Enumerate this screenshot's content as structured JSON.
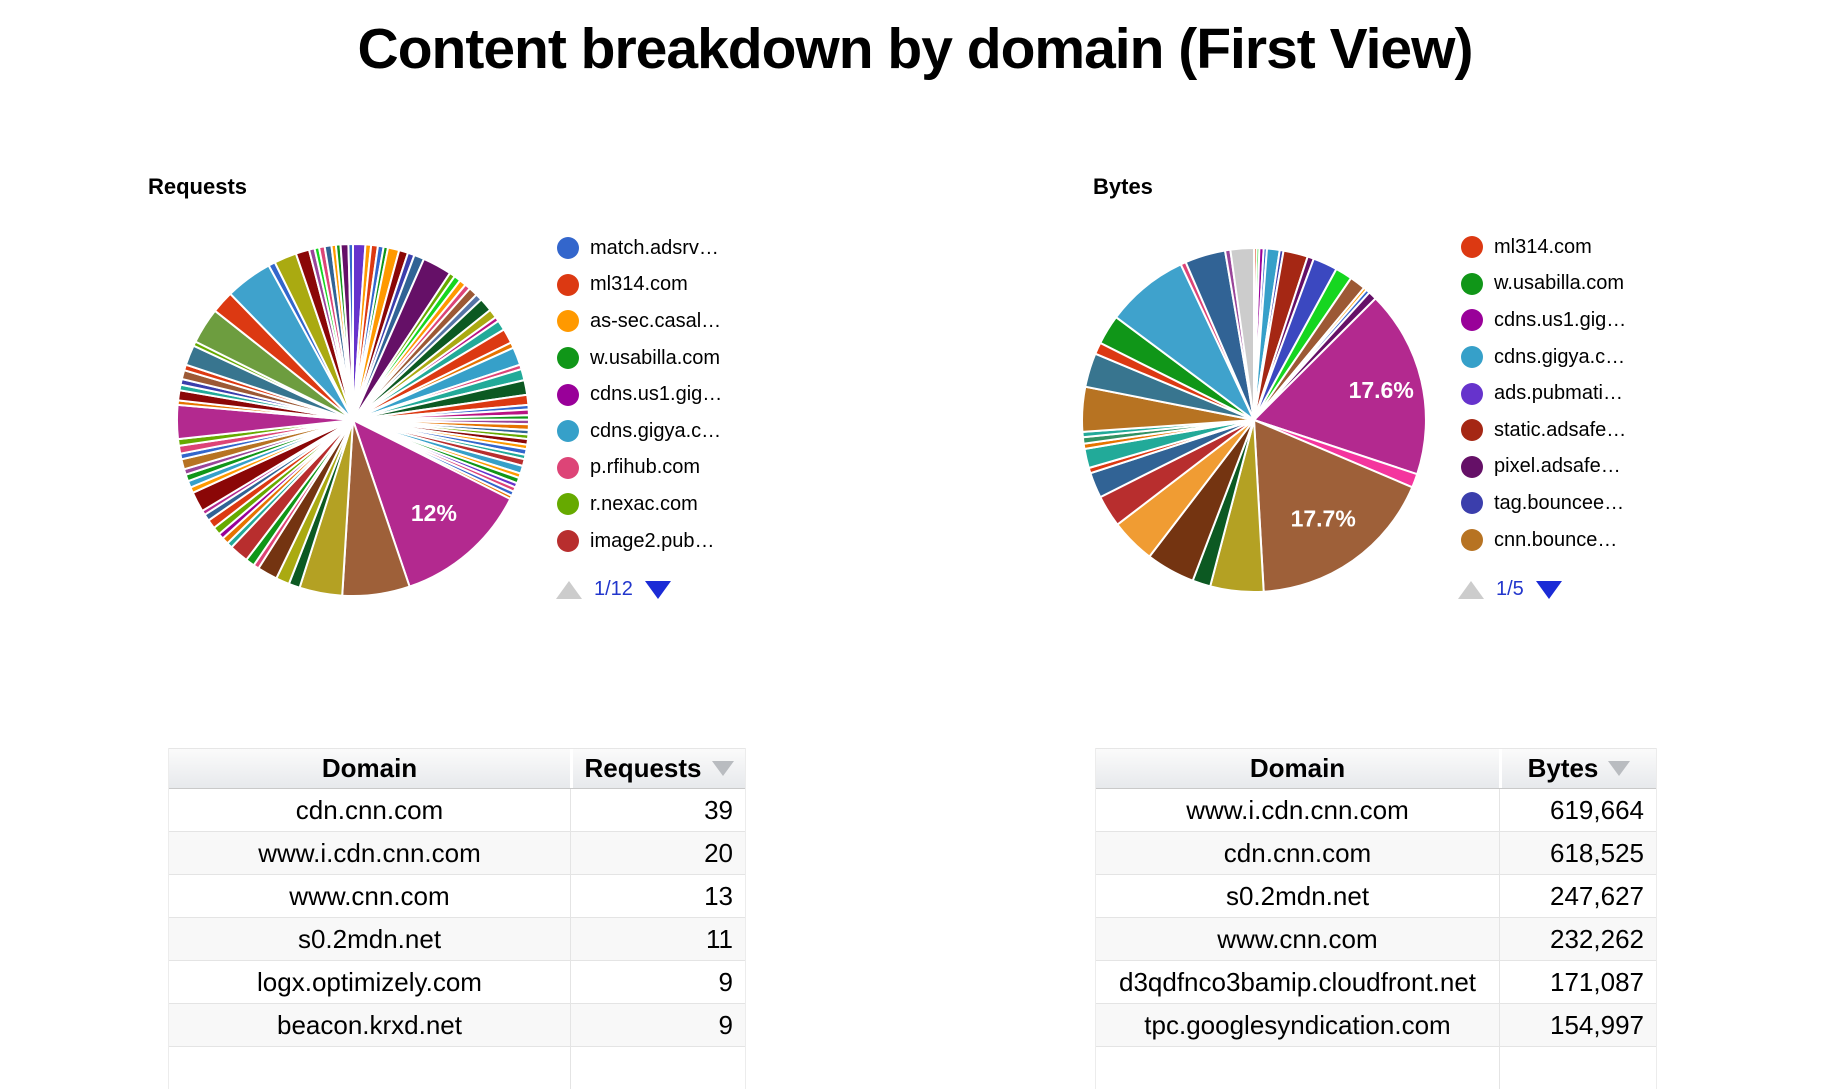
{
  "page": {
    "title": "Content breakdown by domain (First View)"
  },
  "chart_data": [
    {
      "type": "pie",
      "title": "Requests",
      "legend_position": "right",
      "legend_page": "1/12",
      "legend": [
        {
          "label": "match.adsrv…",
          "color": "#3366cc"
        },
        {
          "label": "ml314.com",
          "color": "#dc3912"
        },
        {
          "label": "as-sec.casal…",
          "color": "#ff9900"
        },
        {
          "label": "w.usabilla.com",
          "color": "#109618"
        },
        {
          "label": "cdns.us1.gig…",
          "color": "#990099"
        },
        {
          "label": "cdns.gigya.c…",
          "color": "#36a0c9"
        },
        {
          "label": "p.rfihub.com",
          "color": "#dd4477"
        },
        {
          "label": "r.nexac.com",
          "color": "#66aa00"
        },
        {
          "label": "image2.pub…",
          "color": "#b82e2e"
        }
      ],
      "visible_percent_labels": [
        "12%"
      ],
      "slices": [
        [
          1.1,
          "#6633cc"
        ],
        [
          0.5,
          "#ff9900"
        ],
        [
          0.6,
          "#dc3912"
        ],
        [
          0.5,
          "#3366cc"
        ],
        [
          0.4,
          "#109618"
        ],
        [
          1.0,
          "#ff9900"
        ],
        [
          0.8,
          "#8b0707"
        ],
        [
          0.6,
          "#3b3eac"
        ],
        [
          0.9,
          "#316395"
        ],
        [
          2.6,
          "#651067"
        ],
        [
          0.5,
          "#66aa00"
        ],
        [
          0.6,
          "#16d620"
        ],
        [
          0.6,
          "#ff9900"
        ],
        [
          0.5,
          "#dd4477"
        ],
        [
          0.8,
          "#9c5935"
        ],
        [
          0.6,
          "#5574a6"
        ],
        [
          1.2,
          "#0c5922"
        ],
        [
          0.8,
          "#aaaa11"
        ],
        [
          0.4,
          "#b91383"
        ],
        [
          0.9,
          "#22aa99"
        ],
        [
          1.3,
          "#dc3912"
        ],
        [
          0.5,
          "#e67300"
        ],
        [
          1.6,
          "#36a0c9"
        ],
        [
          0.4,
          "#dd4477"
        ],
        [
          1.0,
          "#22aa99"
        ],
        [
          1.3,
          "#0c5922"
        ],
        [
          0.9,
          "#dc3912"
        ],
        [
          0.4,
          "#3366cc"
        ],
        [
          0.5,
          "#b91383"
        ],
        [
          0.4,
          "#109618"
        ],
        [
          0.4,
          "#994499"
        ],
        [
          0.5,
          "#e67300"
        ],
        [
          0.4,
          "#316395"
        ],
        [
          0.4,
          "#66aa00"
        ],
        [
          0.5,
          "#8b0707"
        ],
        [
          0.4,
          "#ff9900"
        ],
        [
          0.5,
          "#3366cc"
        ],
        [
          0.4,
          "#22aa99"
        ],
        [
          0.6,
          "#b82e2e"
        ],
        [
          0.7,
          "#36a0c9"
        ],
        [
          0.4,
          "#ff9900"
        ],
        [
          0.5,
          "#109618"
        ],
        [
          0.4,
          "#6633cc"
        ],
        [
          0.4,
          "#dd4477"
        ],
        [
          0.4,
          "#3366cc"
        ],
        [
          0.3,
          "#e67300"
        ],
        [
          12.0,
          "#b3298f",
          "12%",
          0.7
        ],
        [
          6.0,
          "#9e6039"
        ],
        [
          3.8,
          "#b4a123"
        ],
        [
          1.0,
          "#0c5922"
        ],
        [
          1.2,
          "#aaaa11"
        ],
        [
          1.8,
          "#743411"
        ],
        [
          0.5,
          "#dd4477"
        ],
        [
          0.8,
          "#109618"
        ],
        [
          1.7,
          "#b82e2e"
        ],
        [
          0.5,
          "#22aa99"
        ],
        [
          0.6,
          "#e67300"
        ],
        [
          0.5,
          "#990099"
        ],
        [
          0.7,
          "#66aa00"
        ],
        [
          0.8,
          "#dc3912"
        ],
        [
          0.6,
          "#316395"
        ],
        [
          0.4,
          "#b3298f"
        ],
        [
          1.8,
          "#8b0707"
        ],
        [
          0.5,
          "#ff9900"
        ],
        [
          0.6,
          "#36a0c9"
        ],
        [
          0.6,
          "#109618"
        ],
        [
          0.5,
          "#994499"
        ],
        [
          0.9,
          "#b77322"
        ],
        [
          0.5,
          "#3366cc"
        ],
        [
          0.7,
          "#dd4477"
        ],
        [
          0.6,
          "#66aa00"
        ],
        [
          3.0,
          "#b3298f"
        ],
        [
          0.4,
          "#e67300"
        ],
        [
          0.9,
          "#8b0707"
        ],
        [
          0.5,
          "#22aa99"
        ],
        [
          0.5,
          "#3b3eac"
        ],
        [
          0.8,
          "#9c5935"
        ],
        [
          0.5,
          "#dc3912"
        ],
        [
          1.8,
          "#38758f"
        ],
        [
          0.4,
          "#66aa00"
        ],
        [
          3.2,
          "#6d9d3f"
        ],
        [
          2.0,
          "#dc3912"
        ],
        [
          4.2,
          "#3fa2cc"
        ],
        [
          0.6,
          "#3366cc"
        ],
        [
          2.0,
          "#aaaa11"
        ],
        [
          1.2,
          "#8b0707"
        ],
        [
          0.5,
          "#994499"
        ],
        [
          0.4,
          "#16d620"
        ],
        [
          0.5,
          "#dd4477"
        ],
        [
          0.6,
          "#316395"
        ],
        [
          0.4,
          "#ff9900"
        ],
        [
          0.4,
          "#109618"
        ],
        [
          0.7,
          "#651067"
        ],
        [
          0.4,
          "#3366cc"
        ]
      ]
    },
    {
      "type": "pie",
      "title": "Bytes",
      "legend_position": "right",
      "legend_page": "1/5",
      "legend": [
        {
          "label": "ml314.com",
          "color": "#dc3912"
        },
        {
          "label": "w.usabilla.com",
          "color": "#109618"
        },
        {
          "label": "cdns.us1.gig…",
          "color": "#990099"
        },
        {
          "label": "cdns.gigya.c…",
          "color": "#36a0c9"
        },
        {
          "label": "ads.pubmati…",
          "color": "#6633cc"
        },
        {
          "label": "static.adsafe…",
          "color": "#a52714"
        },
        {
          "label": "pixel.adsafe…",
          "color": "#651067"
        },
        {
          "label": "tag.bouncee…",
          "color": "#3b3eac"
        },
        {
          "label": "cnn.bounce…",
          "color": "#b77322"
        }
      ],
      "visible_percent_labels": [
        "17.6%",
        "17.7%"
      ],
      "slices": [
        [
          0.25,
          "#dc3912"
        ],
        [
          0.25,
          "#16d620"
        ],
        [
          0.4,
          "#990099"
        ],
        [
          0.3,
          "#3366cc"
        ],
        [
          1.2,
          "#36a0c9"
        ],
        [
          0.35,
          "#3b3eac"
        ],
        [
          2.3,
          "#a52714"
        ],
        [
          0.6,
          "#651067"
        ],
        [
          2.3,
          "#3b48c0"
        ],
        [
          1.6,
          "#16d620"
        ],
        [
          1.5,
          "#9c5935"
        ],
        [
          0.3,
          "#ff9900"
        ],
        [
          0.35,
          "#3366cc"
        ],
        [
          0.8,
          "#651067"
        ],
        [
          17.6,
          "#b3298f",
          "17.6%",
          0.76
        ],
        [
          1.3,
          "#f4359e"
        ],
        [
          17.7,
          "#9e6039",
          "17.7%",
          0.7
        ],
        [
          5.0,
          "#b4a123"
        ],
        [
          1.7,
          "#0c5922"
        ],
        [
          4.6,
          "#743411"
        ],
        [
          4.2,
          "#f09c33"
        ],
        [
          3.0,
          "#b82e2e"
        ],
        [
          2.4,
          "#316395"
        ],
        [
          0.5,
          "#dc3912"
        ],
        [
          1.8,
          "#22aa99"
        ],
        [
          0.5,
          "#e67300"
        ],
        [
          0.6,
          "#329262"
        ],
        [
          0.5,
          "#22aa99"
        ],
        [
          4.2,
          "#b77322"
        ],
        [
          3.2,
          "#38758f"
        ],
        [
          1.1,
          "#dc3912"
        ],
        [
          2.8,
          "#109618"
        ],
        [
          7.8,
          "#3fa2cc"
        ],
        [
          0.5,
          "#dd4477"
        ],
        [
          3.8,
          "#316395"
        ],
        [
          0.5,
          "#994499"
        ],
        [
          2.2,
          "#cccccc"
        ]
      ]
    },
    {
      "type": "table",
      "headers": [
        "Domain",
        "Requests"
      ],
      "sorted_column": "Requests",
      "sort_direction": "desc",
      "rows": [
        [
          "cdn.cnn.com",
          "39"
        ],
        [
          "www.i.cdn.cnn.com",
          "20"
        ],
        [
          "www.cnn.com",
          "13"
        ],
        [
          "s0.2mdn.net",
          "11"
        ],
        [
          "logx.optimizely.com",
          "9"
        ],
        [
          "beacon.krxd.net",
          "9"
        ],
        [
          "",
          ""
        ]
      ]
    },
    {
      "type": "table",
      "headers": [
        "Domain",
        "Bytes"
      ],
      "sorted_column": "Bytes",
      "sort_direction": "desc",
      "rows": [
        [
          "www.i.cdn.cnn.com",
          "619,664"
        ],
        [
          "cdn.cnn.com",
          "618,525"
        ],
        [
          "s0.2mdn.net",
          "247,627"
        ],
        [
          "www.cnn.com",
          "232,262"
        ],
        [
          "d3qdfnco3bamip.cloudfront.net",
          "171,087"
        ],
        [
          "tpc.googlesyndication.com",
          "154,997"
        ],
        [
          "",
          ""
        ]
      ]
    }
  ],
  "icons": {
    "pager_up_disabled_color": "#cccccc",
    "pager_down_active_color": "#1b2bd6",
    "sort_arrow_color": "#b9bcc0"
  }
}
